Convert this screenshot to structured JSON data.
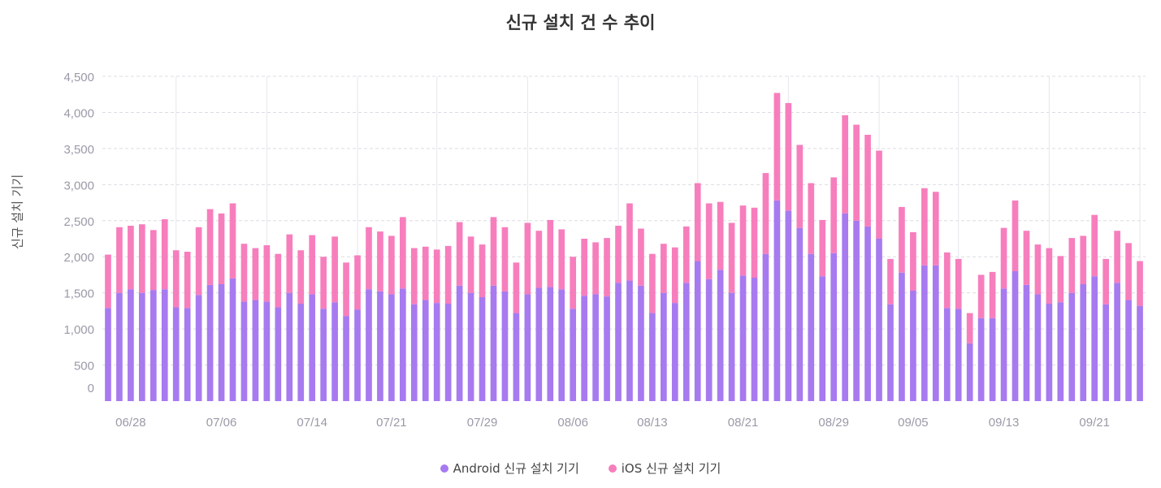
{
  "chart_data": {
    "type": "bar",
    "stacked": true,
    "title": "신규 설치 건 수 추이",
    "ylabel": "신규 설치 기기",
    "xlabel": "",
    "ylim": [
      0,
      4700
    ],
    "yticks": [
      0,
      500,
      1000,
      1500,
      2000,
      2500,
      3000,
      3500,
      4000,
      4500
    ],
    "ytick_labels": [
      "0",
      "500",
      "1,000",
      "1,500",
      "2,000",
      "2,500",
      "3,000",
      "3,500",
      "4,000",
      "4,500"
    ],
    "grid": true,
    "legend_position": "bottom",
    "start_day_label": "06/26",
    "xtick_labels": [
      {
        "index": 2,
        "label": "06/28"
      },
      {
        "index": 10,
        "label": "07/06"
      },
      {
        "index": 18,
        "label": "07/14"
      },
      {
        "index": 25,
        "label": "07/21"
      },
      {
        "index": 33,
        "label": "07/29"
      },
      {
        "index": 41,
        "label": "08/06"
      },
      {
        "index": 48,
        "label": "08/13"
      },
      {
        "index": 56,
        "label": "08/21"
      },
      {
        "index": 64,
        "label": "08/29"
      },
      {
        "index": 71,
        "label": "09/05"
      },
      {
        "index": 79,
        "label": "09/13"
      },
      {
        "index": 87,
        "label": "09/21"
      }
    ],
    "series": [
      {
        "name": "Android 신규 설치 기기",
        "color": "#a77af0",
        "values": [
          1290,
          1500,
          1550,
          1500,
          1540,
          1550,
          1300,
          1290,
          1470,
          1610,
          1620,
          1700,
          1380,
          1400,
          1380,
          1300,
          1500,
          1350,
          1480,
          1280,
          1370,
          1180,
          1270,
          1550,
          1520,
          1480,
          1560,
          1340,
          1400,
          1360,
          1350,
          1600,
          1500,
          1440,
          1600,
          1520,
          1220,
          1480,
          1570,
          1580,
          1550,
          1280,
          1460,
          1480,
          1450,
          1640,
          1670,
          1600,
          1220,
          1500,
          1360,
          1640,
          1940,
          1690,
          1820,
          1500,
          1740,
          1710,
          2040,
          2780,
          2640,
          2400,
          2040,
          1730,
          2050,
          2600,
          2500,
          2420,
          2250,
          1340,
          1780,
          1530,
          1880,
          1880,
          1290,
          1280,
          800,
          1150,
          1150,
          1560,
          1800,
          1610,
          1480,
          1350,
          1370,
          1500,
          1620,
          1730,
          1340,
          1640,
          1400,
          1320
        ]
      },
      {
        "name": "iOS 신규 설치 기기",
        "color": "#f77ebd",
        "values": [
          740,
          910,
          880,
          950,
          830,
          970,
          790,
          780,
          940,
          1050,
          980,
          1040,
          800,
          720,
          780,
          740,
          810,
          740,
          820,
          720,
          910,
          740,
          750,
          860,
          830,
          810,
          990,
          780,
          740,
          740,
          800,
          880,
          780,
          730,
          950,
          890,
          700,
          990,
          790,
          930,
          830,
          720,
          790,
          720,
          810,
          790,
          1070,
          790,
          820,
          680,
          770,
          780,
          1080,
          1050,
          940,
          970,
          970,
          970,
          1120,
          1490,
          1490,
          1150,
          980,
          780,
          1050,
          1360,
          1330,
          1270,
          1220,
          630,
          910,
          810,
          1070,
          1020,
          770,
          690,
          420,
          600,
          640,
          840,
          980,
          750,
          690,
          770,
          640,
          760,
          670,
          850,
          630,
          720,
          790,
          620
        ]
      }
    ]
  },
  "legend": {
    "items": [
      {
        "label": "Android 신규 설치 기기",
        "color": "#a77af0"
      },
      {
        "label": "iOS 신규 설치 기기",
        "color": "#f77ebd"
      }
    ]
  }
}
